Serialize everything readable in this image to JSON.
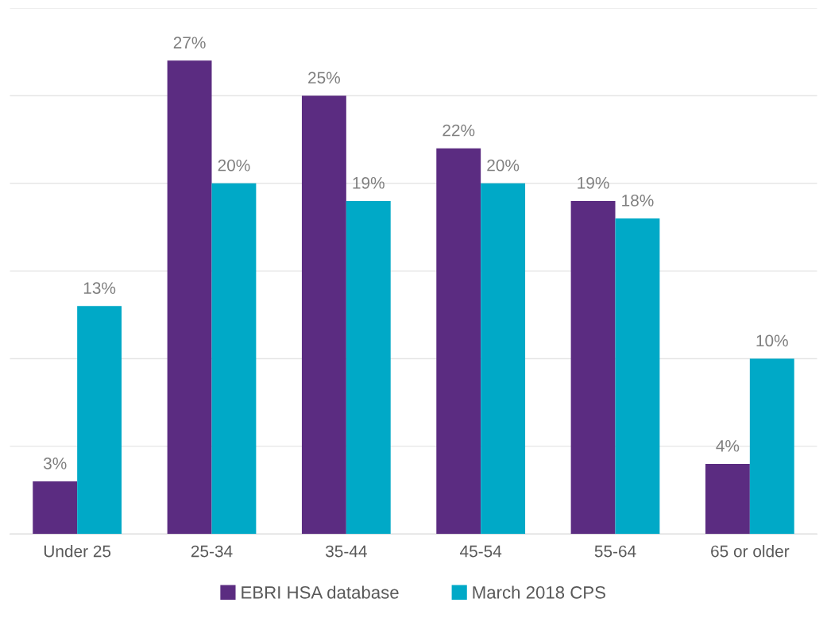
{
  "chart_data": {
    "type": "bar",
    "categories": [
      "Under 25",
      "25-34",
      "35-44",
      "45-54",
      "55-64",
      "65 or older"
    ],
    "series": [
      {
        "name": "EBRI HSA database",
        "color": "#5b2c81",
        "values": [
          3,
          27,
          25,
          22,
          19,
          4
        ],
        "value_labels": [
          "3%",
          "27%",
          "25%",
          "22%",
          "19%",
          "4%"
        ]
      },
      {
        "name": "March 2018 CPS",
        "color": "#00a9c7",
        "values": [
          13,
          20,
          19,
          20,
          18,
          10
        ],
        "value_labels": [
          "13%",
          "20%",
          "19%",
          "20%",
          "18%",
          "10%"
        ]
      }
    ],
    "ylim": [
      0,
      30
    ],
    "yticks": [
      {
        "value": 0,
        "label": null
      },
      {
        "value": 5,
        "label": null
      },
      {
        "value": 10,
        "label": null
      },
      {
        "value": 15,
        "label": null
      },
      {
        "value": 20,
        "label": null
      },
      {
        "value": 25,
        "label": null
      },
      {
        "value": 30,
        "label": null
      }
    ],
    "tick_labels": "x",
    "grid": "y",
    "legend": "bottom"
  }
}
